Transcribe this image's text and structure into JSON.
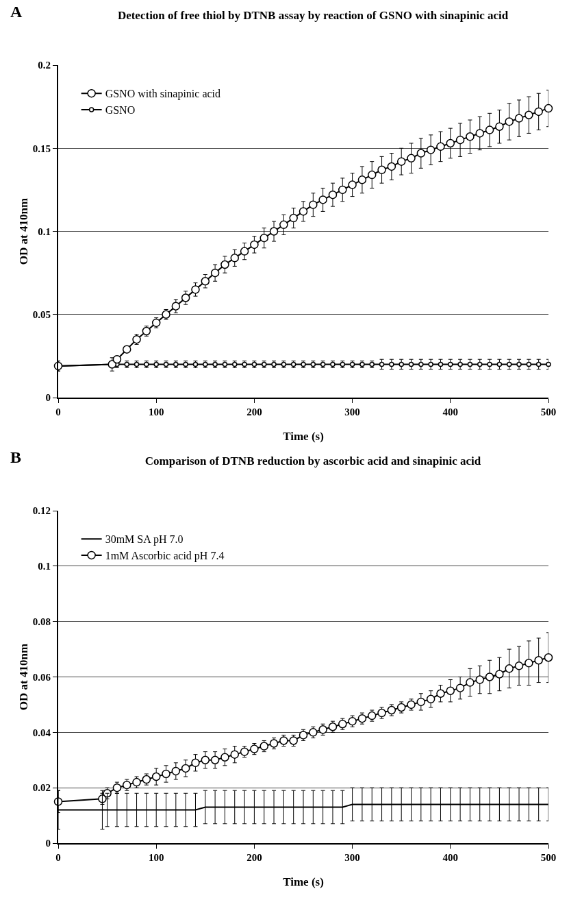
{
  "chart_data": [
    {
      "type": "line",
      "title": "Detection of free thiol by DTNB assay by reaction of GSNO with sinapinic acid",
      "xlabel": "Time (s)",
      "ylabel": "OD at 410nm",
      "annotations": [
        "A"
      ],
      "x": [
        0,
        55,
        60,
        70,
        80,
        90,
        100,
        110,
        120,
        130,
        140,
        150,
        160,
        170,
        180,
        190,
        200,
        210,
        220,
        230,
        240,
        250,
        260,
        270,
        280,
        290,
        300,
        310,
        320,
        330,
        340,
        350,
        360,
        370,
        380,
        390,
        400,
        410,
        420,
        430,
        440,
        450,
        460,
        470,
        480,
        490,
        500
      ],
      "series": [
        {
          "name": "GSNO with sinapinic acid",
          "color": "#000000",
          "marker": "circle",
          "values": [
            0.019,
            0.02,
            0.023,
            0.029,
            0.035,
            0.04,
            0.045,
            0.05,
            0.055,
            0.06,
            0.065,
            0.07,
            0.075,
            0.08,
            0.084,
            0.088,
            0.092,
            0.096,
            0.1,
            0.104,
            0.108,
            0.112,
            0.116,
            0.119,
            0.122,
            0.125,
            0.128,
            0.131,
            0.134,
            0.137,
            0.139,
            0.142,
            0.144,
            0.147,
            0.149,
            0.151,
            0.153,
            0.155,
            0.157,
            0.159,
            0.161,
            0.163,
            0.166,
            0.168,
            0.17,
            0.172,
            0.174
          ],
          "errors": [
            0.003,
            0.002,
            0.002,
            0.002,
            0.003,
            0.003,
            0.003,
            0.003,
            0.004,
            0.004,
            0.004,
            0.004,
            0.005,
            0.005,
            0.005,
            0.005,
            0.005,
            0.006,
            0.006,
            0.006,
            0.006,
            0.006,
            0.007,
            0.007,
            0.007,
            0.007,
            0.007,
            0.008,
            0.008,
            0.008,
            0.008,
            0.008,
            0.009,
            0.009,
            0.009,
            0.009,
            0.009,
            0.01,
            0.01,
            0.01,
            0.01,
            0.01,
            0.011,
            0.011,
            0.011,
            0.011,
            0.011
          ]
        },
        {
          "name": "GSNO",
          "color": "#000000",
          "marker": "circle",
          "values": [
            0.019,
            0.02,
            0.02,
            0.02,
            0.02,
            0.02,
            0.02,
            0.02,
            0.02,
            0.02,
            0.02,
            0.02,
            0.02,
            0.02,
            0.02,
            0.02,
            0.02,
            0.02,
            0.02,
            0.02,
            0.02,
            0.02,
            0.02,
            0.02,
            0.02,
            0.02,
            0.02,
            0.02,
            0.02,
            0.02,
            0.02,
            0.02,
            0.02,
            0.02,
            0.02,
            0.02,
            0.02,
            0.02,
            0.02,
            0.02,
            0.02,
            0.02,
            0.02,
            0.02,
            0.02,
            0.02,
            0.02
          ],
          "errors": [
            0.003,
            0.004,
            0.002,
            0.002,
            0.002,
            0.002,
            0.002,
            0.002,
            0.002,
            0.002,
            0.002,
            0.002,
            0.002,
            0.002,
            0.002,
            0.002,
            0.002,
            0.002,
            0.002,
            0.002,
            0.002,
            0.002,
            0.002,
            0.002,
            0.002,
            0.002,
            0.002,
            0.002,
            0.002,
            0.003,
            0.003,
            0.003,
            0.003,
            0.003,
            0.003,
            0.003,
            0.003,
            0.003,
            0.003,
            0.003,
            0.003,
            0.003,
            0.003,
            0.003,
            0.003,
            0.003,
            0.003
          ]
        }
      ],
      "xlim": [
        0,
        500
      ],
      "xticks": [
        0,
        100,
        200,
        300,
        400,
        500
      ],
      "ylim": [
        0,
        0.2
      ],
      "yticks": [
        0,
        0.05,
        0.1,
        0.15,
        0.2
      ],
      "grid": "y",
      "legend": "top left"
    },
    {
      "type": "line",
      "title": "Comparison of DTNB reduction by ascorbic acid and sinapinic acid",
      "xlabel": "Time (s)",
      "ylabel": "OD at 410nm",
      "annotations": [
        "B"
      ],
      "x": [
        0,
        45,
        50,
        60,
        70,
        80,
        90,
        100,
        110,
        120,
        130,
        140,
        150,
        160,
        170,
        180,
        190,
        200,
        210,
        220,
        230,
        240,
        250,
        260,
        270,
        280,
        290,
        300,
        310,
        320,
        330,
        340,
        350,
        360,
        370,
        380,
        390,
        400,
        410,
        420,
        430,
        440,
        450,
        460,
        470,
        480,
        490,
        500
      ],
      "series": [
        {
          "name": "30mM SA pH 7.0",
          "color": "#000000",
          "marker": "none",
          "values": [
            0.012,
            0.012,
            0.012,
            0.012,
            0.012,
            0.012,
            0.012,
            0.012,
            0.012,
            0.012,
            0.012,
            0.012,
            0.013,
            0.013,
            0.013,
            0.013,
            0.013,
            0.013,
            0.013,
            0.013,
            0.013,
            0.013,
            0.013,
            0.013,
            0.013,
            0.013,
            0.013,
            0.014,
            0.014,
            0.014,
            0.014,
            0.014,
            0.014,
            0.014,
            0.014,
            0.014,
            0.014,
            0.014,
            0.014,
            0.014,
            0.014,
            0.014,
            0.014,
            0.014,
            0.014,
            0.014,
            0.014,
            0.014
          ],
          "errors": [
            0.007,
            0.007,
            0.006,
            0.006,
            0.006,
            0.006,
            0.006,
            0.006,
            0.006,
            0.006,
            0.006,
            0.006,
            0.006,
            0.006,
            0.006,
            0.006,
            0.006,
            0.006,
            0.006,
            0.006,
            0.006,
            0.006,
            0.006,
            0.006,
            0.006,
            0.006,
            0.006,
            0.006,
            0.006,
            0.006,
            0.006,
            0.006,
            0.006,
            0.006,
            0.006,
            0.006,
            0.006,
            0.006,
            0.006,
            0.006,
            0.006,
            0.006,
            0.006,
            0.006,
            0.006,
            0.006,
            0.006,
            0.006
          ]
        },
        {
          "name": "1mM Ascorbic acid pH 7.4",
          "color": "#000000",
          "marker": "circle",
          "values": [
            0.015,
            0.016,
            0.018,
            0.02,
            0.021,
            0.022,
            0.023,
            0.024,
            0.025,
            0.026,
            0.027,
            0.029,
            0.03,
            0.03,
            0.031,
            0.032,
            0.033,
            0.034,
            0.035,
            0.036,
            0.037,
            0.037,
            0.039,
            0.04,
            0.041,
            0.042,
            0.043,
            0.044,
            0.045,
            0.046,
            0.047,
            0.048,
            0.049,
            0.05,
            0.051,
            0.052,
            0.054,
            0.055,
            0.056,
            0.058,
            0.059,
            0.06,
            0.061,
            0.063,
            0.064,
            0.065,
            0.066,
            0.067
          ],
          "errors": [
            0.004,
            0.002,
            0.002,
            0.002,
            0.002,
            0.002,
            0.002,
            0.003,
            0.003,
            0.003,
            0.003,
            0.003,
            0.003,
            0.003,
            0.003,
            0.003,
            0.002,
            0.002,
            0.002,
            0.002,
            0.002,
            0.002,
            0.002,
            0.002,
            0.002,
            0.002,
            0.002,
            0.002,
            0.002,
            0.002,
            0.002,
            0.002,
            0.002,
            0.002,
            0.003,
            0.003,
            0.003,
            0.004,
            0.004,
            0.005,
            0.005,
            0.006,
            0.006,
            0.007,
            0.007,
            0.008,
            0.008,
            0.009
          ]
        }
      ],
      "xlim": [
        0,
        500
      ],
      "xticks": [
        0,
        100,
        200,
        300,
        400,
        500
      ],
      "ylim": [
        0,
        0.12
      ],
      "yticks": [
        0,
        0.02,
        0.04,
        0.06,
        0.08,
        0.1,
        0.12
      ],
      "grid": "y",
      "legend": "top left"
    }
  ]
}
